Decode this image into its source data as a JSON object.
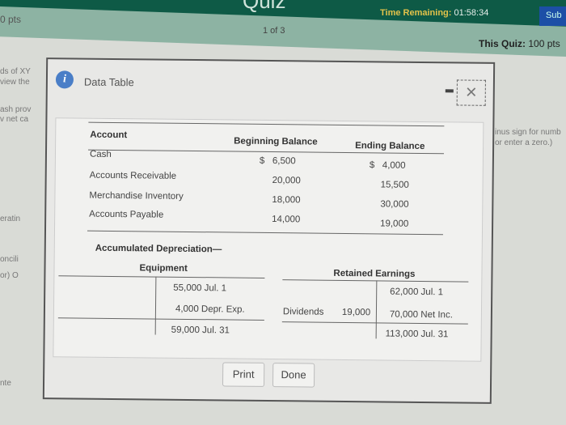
{
  "header": {
    "title": "Quiz",
    "time_label": "Time Remaining:",
    "time_value": "01:58:34",
    "submit_label": "Sub",
    "pts": "0 pts",
    "page_indicator": "1 of 3",
    "this_quiz_label": "This Quiz:",
    "this_quiz_value": "100 pts"
  },
  "background_fragments": {
    "left": [
      "ds of XY",
      "view the",
      "ash prov",
      "v net ca",
      "eratin",
      "oncili",
      "or) O",
      "nte"
    ],
    "right": [
      "inus sign for numb",
      "or enter a zero.)"
    ]
  },
  "modal": {
    "title": "Data Table",
    "print_label": "Print",
    "done_label": "Done",
    "balances": {
      "headers": [
        "Account",
        "Beginning Balance",
        "Ending Balance"
      ],
      "rows": [
        {
          "account": "Cash",
          "beginning": "$   6,500",
          "ending": "$   4,000"
        },
        {
          "account": "Accounts Receivable",
          "beginning": "20,000",
          "ending": "15,500"
        },
        {
          "account": "Merchandise Inventory",
          "beginning": "18,000",
          "ending": "30,000"
        },
        {
          "account": "Accounts Payable",
          "beginning": "14,000",
          "ending": "19,000"
        }
      ]
    },
    "depreciation": {
      "title_line1": "Accumulated Depreciation—",
      "title_line2": "Equipment",
      "entries": [
        "55,000 Jul. 1",
        "4,000 Depr. Exp.",
        "59,000 Jul. 31"
      ]
    },
    "retained": {
      "title": "Retained Earnings",
      "debit_label": "Dividends",
      "debit_value": "19,000",
      "entries": [
        "62,000 Jul. 1",
        "70,000 Net Inc.",
        "113,000 Jul. 31"
      ]
    }
  }
}
